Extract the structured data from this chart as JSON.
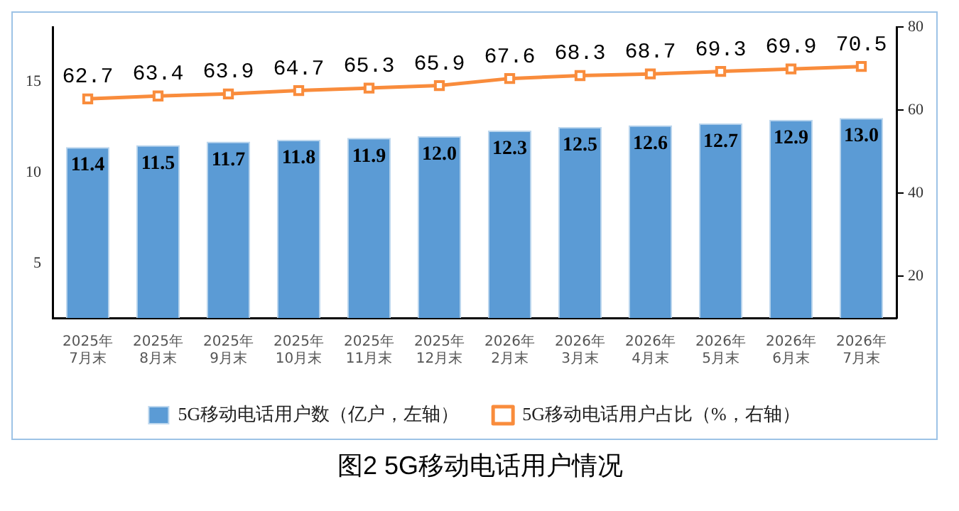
{
  "chart_data": {
    "type": "bar",
    "title": "图2 5G移动电话用户情况",
    "categories": [
      "2025年\n7月末",
      "2025年\n8月末",
      "2025年\n9月末",
      "2025年\n10月末",
      "2025年\n11月末",
      "2025年\n12月末",
      "2026年\n2月末",
      "2026年\n3月末",
      "2026年\n4月末",
      "2026年\n5月末",
      "2026年\n6月末",
      "2026年\n7月末"
    ],
    "series": [
      {
        "name": "5G移动电话用户数（亿户，左轴）",
        "color": "#5b9bd5",
        "values": [
          11.4,
          11.5,
          11.7,
          11.8,
          11.9,
          12.0,
          12.3,
          12.5,
          12.6,
          12.7,
          12.9,
          13.0
        ],
        "value_labels": [
          "11.4",
          "11.5",
          "11.7",
          "11.8",
          "11.9",
          "12.0",
          "12.3",
          "12.5",
          "12.6",
          "12.7",
          "12.9",
          "13.0"
        ]
      },
      {
        "name": "5G移动电话用户占比（%，右轴）",
        "type": "line",
        "axis": "y2",
        "color": "#f98c3c",
        "marker": "square",
        "values": [
          62.7,
          63.4,
          63.9,
          64.7,
          65.3,
          65.9,
          67.6,
          68.3,
          68.7,
          69.3,
          69.9,
          70.5
        ]
      }
    ],
    "ylim": [
      2,
      18
    ],
    "yticks": [
      5,
      10,
      15
    ],
    "y2lim": [
      10,
      80
    ],
    "y2ticks": [
      20,
      40,
      60,
      80
    ],
    "data_labels": true,
    "legend": "bottom",
    "grid": false
  }
}
